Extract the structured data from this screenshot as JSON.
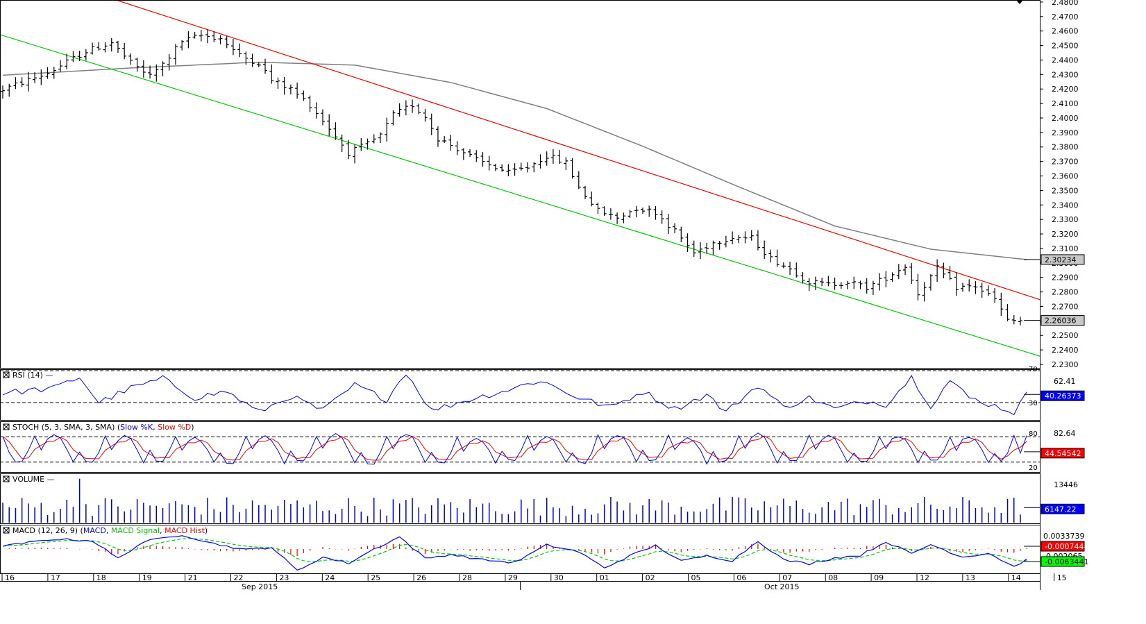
{
  "colors": {
    "bars": "#000000",
    "moving_average": "#7f7f7f",
    "upper_channel": "#ff0000",
    "lower_channel": "#00cc00",
    "rsi_line": "#0000ff",
    "stoch_k": "#0000ff",
    "stoch_d": "#ff0000",
    "volume": "#0000cc",
    "macd": "#0000ff",
    "macd_signal": "#00cc00",
    "macd_hist": "#ff0000",
    "label_gray": "#c8c8c8",
    "label_blue": "#0000ff",
    "label_red": "#ff0000",
    "label_green": "#00ff00"
  },
  "chart_data": [
    {
      "type": "candlestick",
      "panel": "price",
      "yticks": [
        "2.4800",
        "2.4700",
        "2.4600",
        "2.4500",
        "2.4400",
        "2.4300",
        "2.4200",
        "2.4100",
        "2.4000",
        "2.3900",
        "2.3800",
        "2.3700",
        "2.3600",
        "2.3500",
        "2.3400",
        "2.3300",
        "2.3200",
        "2.3100",
        "2.3000",
        "2.2900",
        "2.2800",
        "2.2700",
        "2.2600",
        "2.2500",
        "2.2400",
        "2.2300"
      ],
      "ylim": [
        2.2276,
        2.4814
      ],
      "x_dates": [
        "16",
        "17",
        "18",
        "19",
        "21",
        "22",
        "23",
        "24",
        "25",
        "26",
        "28",
        "29",
        "30",
        "01",
        "02",
        "05",
        "06",
        "07",
        "08",
        "09",
        "12",
        "13",
        "14",
        "15"
      ],
      "month_labels": [
        "Sep 2015",
        "Oct 2015"
      ],
      "price_path": [
        [
          0,
          2.418
        ],
        [
          8,
          2.431
        ],
        [
          14,
          2.446
        ],
        [
          18,
          2.452
        ],
        [
          21,
          2.438
        ],
        [
          24,
          2.429
        ],
        [
          26,
          2.437
        ],
        [
          29,
          2.453
        ],
        [
          32,
          2.457
        ],
        [
          35,
          2.455
        ],
        [
          38,
          2.443
        ],
        [
          41,
          2.438
        ],
        [
          43,
          2.426
        ],
        [
          46,
          2.42
        ],
        [
          49,
          2.409
        ],
        [
          52,
          2.393
        ],
        [
          55,
          2.376
        ],
        [
          58,
          2.382
        ],
        [
          60,
          2.388
        ],
        [
          62,
          2.402
        ],
        [
          65,
          2.409
        ],
        [
          67,
          2.401
        ],
        [
          69,
          2.386
        ],
        [
          72,
          2.379
        ],
        [
          75,
          2.371
        ],
        [
          78,
          2.366
        ],
        [
          80,
          2.362
        ],
        [
          83,
          2.366
        ],
        [
          86,
          2.374
        ],
        [
          89,
          2.369
        ],
        [
          91,
          2.352
        ],
        [
          94,
          2.336
        ],
        [
          97,
          2.331
        ],
        [
          100,
          2.338
        ],
        [
          103,
          2.335
        ],
        [
          106,
          2.322
        ],
        [
          109,
          2.307
        ],
        [
          112,
          2.314
        ],
        [
          115,
          2.318
        ],
        [
          118,
          2.317
        ],
        [
          121,
          2.303
        ],
        [
          124,
          2.296
        ],
        [
          127,
          2.287
        ],
        [
          130,
          2.285
        ],
        [
          133,
          2.287
        ],
        [
          136,
          2.283
        ],
        [
          139,
          2.29
        ],
        [
          142,
          2.298
        ],
        [
          144,
          2.279
        ],
        [
          147,
          2.296
        ],
        [
          150,
          2.283
        ],
        [
          153,
          2.284
        ],
        [
          156,
          2.275
        ],
        [
          158,
          2.26
        ],
        [
          160,
          2.26
        ]
      ],
      "total_bars": 160,
      "moving_average": [
        [
          0,
          2.4295
        ],
        [
          20,
          2.4345
        ],
        [
          40,
          2.4385
        ],
        [
          55,
          2.4365
        ],
        [
          70,
          2.4245
        ],
        [
          85,
          2.4065
        ],
        [
          100,
          2.3805
        ],
        [
          115,
          2.3525
        ],
        [
          130,
          2.3255
        ],
        [
          145,
          2.3095
        ],
        [
          160,
          2.3023
        ]
      ],
      "upper_channel": {
        "start": [
          17.7,
          2.4814
        ],
        "end": [
          160,
          2.2745
        ]
      },
      "lower_channel": {
        "start": [
          0,
          2.4575
        ],
        "end": [
          160,
          2.2355
        ]
      },
      "current_labels": [
        {
          "value": "2.30234",
          "color": "gray"
        },
        {
          "value": "2.26036",
          "color": "gray"
        }
      ]
    },
    {
      "type": "line",
      "panel": "rsi",
      "title": "RSI (14)",
      "levels": {
        "upper": "70",
        "lower": "30",
        "mid_tick": "62.41"
      },
      "current_value": "40.26373",
      "ylim": [
        10,
        70
      ],
      "anchors": [
        [
          0,
          42
        ],
        [
          8,
          48
        ],
        [
          12,
          62
        ],
        [
          15,
          30
        ],
        [
          20,
          48
        ],
        [
          25,
          60
        ],
        [
          30,
          36
        ],
        [
          35,
          44
        ],
        [
          40,
          18
        ],
        [
          45,
          38
        ],
        [
          50,
          20
        ],
        [
          55,
          52
        ],
        [
          60,
          34
        ],
        [
          63,
          68
        ],
        [
          67,
          20
        ],
        [
          72,
          32
        ],
        [
          78,
          44
        ],
        [
          84,
          58
        ],
        [
          90,
          36
        ],
        [
          95,
          24
        ],
        [
          100,
          44
        ],
        [
          105,
          22
        ],
        [
          110,
          40
        ],
        [
          113,
          18
        ],
        [
          118,
          52
        ],
        [
          122,
          24
        ],
        [
          126,
          36
        ],
        [
          130,
          22
        ],
        [
          135,
          32
        ],
        [
          138,
          28
        ],
        [
          142,
          62
        ],
        [
          145,
          26
        ],
        [
          148,
          58
        ],
        [
          151,
          36
        ],
        [
          155,
          26
        ],
        [
          158,
          18
        ],
        [
          160,
          40
        ]
      ]
    },
    {
      "type": "line",
      "panel": "stochastic",
      "title": "STOCH (5, 3, SMA, 3, SMA)",
      "legend": [
        "Slow %K",
        "Slow %D"
      ],
      "levels": {
        "upper": "80",
        "lower": "20",
        "top_tick": "82.64"
      },
      "current_value": "44.54542",
      "ylim": [
        0,
        100
      ],
      "k_cycles": [
        [
          0,
          5,
          20
        ],
        [
          5,
          11,
          84
        ],
        [
          11,
          16,
          18
        ],
        [
          16,
          22,
          82
        ],
        [
          22,
          27,
          20
        ],
        [
          27,
          33,
          78
        ],
        [
          33,
          38,
          16
        ],
        [
          38,
          44,
          80
        ],
        [
          44,
          49,
          18
        ],
        [
          49,
          55,
          86
        ],
        [
          55,
          60,
          12
        ],
        [
          60,
          66,
          88
        ],
        [
          66,
          71,
          14
        ],
        [
          71,
          77,
          78
        ],
        [
          77,
          82,
          22
        ],
        [
          82,
          88,
          82
        ],
        [
          88,
          93,
          16
        ],
        [
          93,
          99,
          84
        ],
        [
          99,
          104,
          20
        ],
        [
          104,
          110,
          78
        ],
        [
          110,
          115,
          18
        ],
        [
          115,
          121,
          86
        ],
        [
          121,
          126,
          20
        ],
        [
          126,
          132,
          84
        ],
        [
          132,
          137,
          16
        ],
        [
          137,
          143,
          82
        ],
        [
          143,
          148,
          22
        ],
        [
          148,
          154,
          80
        ],
        [
          154,
          158,
          22
        ],
        [
          158,
          160,
          44
        ]
      ]
    },
    {
      "type": "bar",
      "panel": "volume",
      "title": "VOLUME",
      "tick": "13446",
      "current_value": "6147.22",
      "ylim": [
        0,
        19000
      ],
      "spike_bar": 12,
      "spike_value": 18500,
      "base_range": [
        2500,
        11000
      ]
    },
    {
      "type": "line",
      "panel": "macd",
      "title": "MACD (12, 26, 9)",
      "legend": [
        "MACD",
        "MACD Signal",
        "MACD Hist"
      ],
      "labels": {
        "upper_tick": "0.0033739",
        "hidden_tick": "-0.002065"
      },
      "current_values": [
        {
          "value": "-0.0007448",
          "color": "red"
        },
        {
          "value": "-0.0063441",
          "color": "green"
        }
      ],
      "ylim": [
        -0.011,
        0.006
      ],
      "anchors": [
        [
          0,
          -0.0015
        ],
        [
          8,
          0.0012
        ],
        [
          14,
          0.0006
        ],
        [
          18,
          -0.006
        ],
        [
          22,
          0.0002
        ],
        [
          28,
          0.0028
        ],
        [
          33,
          -0.0005
        ],
        [
          38,
          -0.0028
        ],
        [
          42,
          -0.0018
        ],
        [
          46,
          -0.0105
        ],
        [
          50,
          -0.0055
        ],
        [
          54,
          -0.0078
        ],
        [
          58,
          -0.0025
        ],
        [
          62,
          0.002
        ],
        [
          66,
          -0.006
        ],
        [
          70,
          -0.0045
        ],
        [
          75,
          -0.0065
        ],
        [
          80,
          -0.0075
        ],
        [
          85,
          -0.001
        ],
        [
          90,
          -0.0035
        ],
        [
          94,
          -0.0095
        ],
        [
          98,
          -0.005
        ],
        [
          102,
          -0.0012
        ],
        [
          106,
          -0.007
        ],
        [
          110,
          -0.005
        ],
        [
          114,
          -0.0068
        ],
        [
          118,
          0.0005
        ],
        [
          122,
          -0.0065
        ],
        [
          126,
          -0.008
        ],
        [
          130,
          -0.0058
        ],
        [
          134,
          -0.0048
        ],
        [
          138,
          0.0002
        ],
        [
          142,
          -0.0042
        ],
        [
          145,
          -0.0008
        ],
        [
          150,
          -0.0055
        ],
        [
          154,
          -0.004
        ],
        [
          158,
          -0.009
        ],
        [
          160,
          -0.0064
        ]
      ]
    }
  ]
}
